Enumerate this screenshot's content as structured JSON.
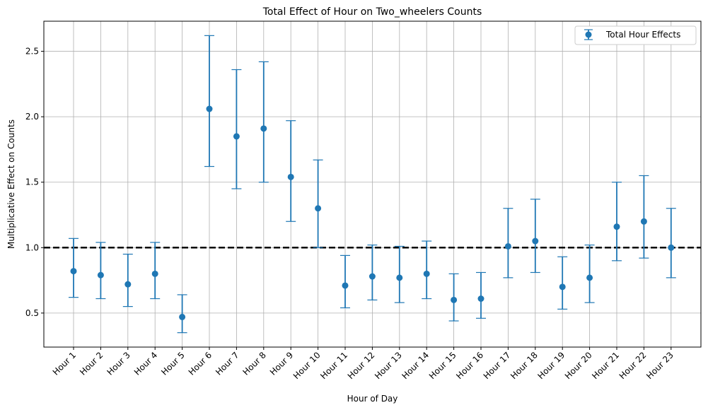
{
  "chart_data": {
    "type": "scatter",
    "title": "Total Effect of Hour on Two_wheelers Counts",
    "xlabel": "Hour of Day",
    "ylabel": "Multiplicative Effect on Counts",
    "categories": [
      "Hour 1",
      "Hour 2",
      "Hour 3",
      "Hour 4",
      "Hour 5",
      "Hour 6",
      "Hour 7",
      "Hour 8",
      "Hour 9",
      "Hour 10",
      "Hour 11",
      "Hour 12",
      "Hour 13",
      "Hour 14",
      "Hour 15",
      "Hour 16",
      "Hour 17",
      "Hour 18",
      "Hour 19",
      "Hour 20",
      "Hour 21",
      "Hour 22",
      "Hour 23"
    ],
    "series": [
      {
        "name": "Total Hour Effects",
        "values": [
          0.82,
          0.79,
          0.72,
          0.8,
          0.47,
          2.06,
          1.85,
          1.91,
          1.54,
          1.3,
          0.71,
          0.78,
          0.77,
          0.8,
          0.6,
          0.61,
          1.01,
          1.05,
          0.7,
          0.77,
          1.16,
          1.2,
          1.0
        ],
        "lower": [
          0.62,
          0.61,
          0.55,
          0.61,
          0.35,
          1.62,
          1.45,
          1.5,
          1.2,
          1.0,
          0.54,
          0.6,
          0.58,
          0.61,
          0.44,
          0.46,
          0.77,
          0.81,
          0.53,
          0.58,
          0.9,
          0.92,
          0.77
        ],
        "upper": [
          1.07,
          1.04,
          0.95,
          1.04,
          0.64,
          2.62,
          2.36,
          2.42,
          1.97,
          1.67,
          0.94,
          1.02,
          1.01,
          1.05,
          0.8,
          0.81,
          1.3,
          1.37,
          0.93,
          1.02,
          1.5,
          1.55,
          1.3
        ],
        "color": "#1f77b4"
      }
    ],
    "reference_line": {
      "y": 1.0,
      "style": "dashed",
      "color": "#000000"
    },
    "yticks": [
      0.5,
      1.0,
      1.5,
      2.0,
      2.5
    ],
    "ytick_labels": [
      "0.5",
      "1.0",
      "1.5",
      "2.0",
      "2.5"
    ],
    "ylim": [
      0.24,
      2.73
    ],
    "grid": true,
    "legend_position": "top-right"
  }
}
